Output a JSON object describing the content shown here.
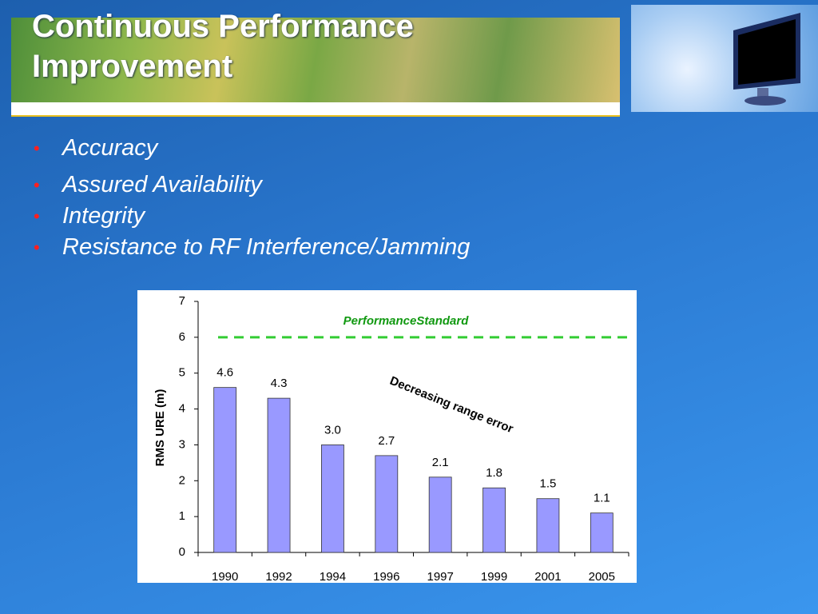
{
  "slide": {
    "title": "Continuous Performance Improvement",
    "bullets": [
      "Accuracy",
      "Assured Availability",
      "Integrity",
      "Resistance to RF Interference/Jamming"
    ]
  },
  "chart_data": {
    "type": "bar",
    "ylabel": "RMS URE (m)",
    "categories": [
      "1990",
      "1992",
      "1994",
      "1996",
      "1997",
      "1999",
      "2001",
      "2005"
    ],
    "values": [
      4.6,
      4.3,
      3,
      2.7,
      2.1,
      1.8,
      1.5,
      1.1
    ],
    "value_labels": [
      "4.6",
      "4.3",
      "3.0",
      "2.7",
      "2.1",
      "1.8",
      "1.5",
      "1.1"
    ],
    "color": "#9999ff",
    "ylim": [
      0,
      7
    ],
    "yticks": [
      0,
      1,
      2,
      3,
      4,
      5,
      6,
      7
    ],
    "reference_line": {
      "label": "PerformanceStandard",
      "value": 6,
      "color": "#33cc33"
    },
    "annotation": "Decreasing range error"
  }
}
